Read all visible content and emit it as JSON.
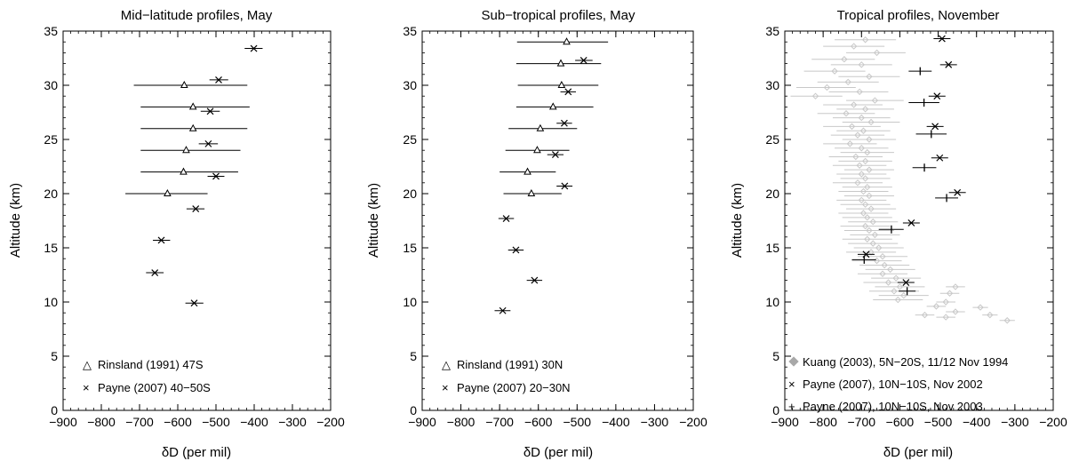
{
  "chart_data": [
    {
      "type": "scatter",
      "title": "Mid−latitude profiles, May",
      "xlabel": "δD (per mil)",
      "ylabel": "Altitude (km)",
      "xlim": [
        -900,
        -200
      ],
      "ylim": [
        0,
        35
      ],
      "xticks": [
        "−900",
        "−800",
        "−700",
        "−600",
        "−500",
        "−400",
        "−300",
        "−200"
      ],
      "yticks": [
        "0",
        "5",
        "10",
        "15",
        "20",
        "25",
        "30",
        "35"
      ],
      "legend_position": "bottom-left",
      "series": [
        {
          "name": "Rinsland (1991) 47S",
          "marker": "triangle",
          "points": [
            {
              "x": -583,
              "y": 30,
              "xerr_low": -715,
              "xerr_high": -418
            },
            {
              "x": -560,
              "y": 28,
              "xerr_low": -697,
              "xerr_high": -412
            },
            {
              "x": -560,
              "y": 26,
              "xerr_low": -697,
              "xerr_high": -418
            },
            {
              "x": -578,
              "y": 24,
              "xerr_low": -697,
              "xerr_high": -436
            },
            {
              "x": -585,
              "y": 22,
              "xerr_low": -697,
              "xerr_high": -442
            },
            {
              "x": -627,
              "y": 20,
              "xerr_low": -737,
              "xerr_high": -522
            }
          ]
        },
        {
          "name": "Payne (2007) 40−50S",
          "marker": "x",
          "points": [
            {
              "x": -401,
              "y": 33.4,
              "xerr_low": -425,
              "xerr_high": -378
            },
            {
              "x": -493,
              "y": 30.5,
              "xerr_low": -517,
              "xerr_high": -468
            },
            {
              "x": -515,
              "y": 27.6,
              "xerr_low": -540,
              "xerr_high": -490
            },
            {
              "x": -520,
              "y": 24.6,
              "xerr_low": -545,
              "xerr_high": -495
            },
            {
              "x": -500,
              "y": 21.6,
              "xerr_low": -522,
              "xerr_high": -478
            },
            {
              "x": -553,
              "y": 18.6,
              "xerr_low": -577,
              "xerr_high": -530
            },
            {
              "x": -643,
              "y": 15.7,
              "xerr_low": -665,
              "xerr_high": -620
            },
            {
              "x": -660,
              "y": 12.7,
              "xerr_low": -683,
              "xerr_high": -637
            },
            {
              "x": -557,
              "y": 9.9,
              "xerr_low": -580,
              "xerr_high": -533
            }
          ]
        }
      ]
    },
    {
      "type": "scatter",
      "title": "Sub−tropical profiles, May",
      "xlabel": "δD (per mil)",
      "ylabel": "Altitude (km)",
      "xlim": [
        -900,
        -200
      ],
      "ylim": [
        0,
        35
      ],
      "xticks": [
        "−900",
        "−800",
        "−700",
        "−600",
        "−500",
        "−400",
        "−300",
        "−200"
      ],
      "yticks": [
        "0",
        "5",
        "10",
        "15",
        "20",
        "25",
        "30",
        "35"
      ],
      "legend_position": "bottom-left",
      "series": [
        {
          "name": "Rinsland (1991) 30N",
          "marker": "triangle",
          "points": [
            {
              "x": -527,
              "y": 34,
              "xerr_low": -655,
              "xerr_high": -420
            },
            {
              "x": -542,
              "y": 32,
              "xerr_low": -657,
              "xerr_high": -438
            },
            {
              "x": -540,
              "y": 30,
              "xerr_low": -653,
              "xerr_high": -445
            },
            {
              "x": -562,
              "y": 28,
              "xerr_low": -657,
              "xerr_high": -458
            },
            {
              "x": -595,
              "y": 26,
              "xerr_low": -677,
              "xerr_high": -500
            },
            {
              "x": -603,
              "y": 24,
              "xerr_low": -685,
              "xerr_high": -520
            },
            {
              "x": -628,
              "y": 22,
              "xerr_low": -700,
              "xerr_high": -555
            },
            {
              "x": -618,
              "y": 20,
              "xerr_low": -690,
              "xerr_high": -540
            }
          ]
        },
        {
          "name": "Payne (2007) 20−30N",
          "marker": "x",
          "points": [
            {
              "x": -483,
              "y": 32.3,
              "xerr_low": -505,
              "xerr_high": -460
            },
            {
              "x": -523,
              "y": 29.4,
              "xerr_low": -543,
              "xerr_high": -503
            },
            {
              "x": -533,
              "y": 26.5,
              "xerr_low": -553,
              "xerr_high": -513
            },
            {
              "x": -556,
              "y": 23.6,
              "xerr_low": -577,
              "xerr_high": -535
            },
            {
              "x": -532,
              "y": 20.7,
              "xerr_low": -553,
              "xerr_high": -512
            },
            {
              "x": -683,
              "y": 17.7,
              "xerr_low": -703,
              "xerr_high": -663
            },
            {
              "x": -658,
              "y": 14.8,
              "xerr_low": -678,
              "xerr_high": -638
            },
            {
              "x": -610,
              "y": 12.0,
              "xerr_low": -630,
              "xerr_high": -590
            },
            {
              "x": -692,
              "y": 9.2,
              "xerr_low": -713,
              "xerr_high": -672
            }
          ]
        }
      ]
    },
    {
      "type": "scatter",
      "title": "Tropical profiles, November",
      "xlabel": "δD (per mil)",
      "ylabel": "Altitude (km)",
      "xlim": [
        -900,
        -200
      ],
      "ylim": [
        0,
        35
      ],
      "xticks": [
        "−900",
        "−800",
        "−700",
        "−600",
        "−500",
        "−400",
        "−300",
        "−200"
      ],
      "yticks": [
        "0",
        "5",
        "10",
        "15",
        "20",
        "25",
        "30",
        "35"
      ],
      "legend_position": "bottom-left",
      "series": [
        {
          "name": "Kuang (2003), 5N−20S, 11/12 Nov 1994",
          "marker": "diamond",
          "color": "#c8c8c8",
          "points_note_free": true,
          "points": [
            {
              "x": -690,
              "y": 34.2,
              "xerr_low": -770,
              "xerr_high": -610
            },
            {
              "x": -720,
              "y": 33.6,
              "xerr_low": -800,
              "xerr_high": -640
            },
            {
              "x": -660,
              "y": 33.0,
              "xerr_low": -740,
              "xerr_high": -585
            },
            {
              "x": -745,
              "y": 32.4,
              "xerr_low": -830,
              "xerr_high": -665
            },
            {
              "x": -700,
              "y": 31.9,
              "xerr_low": -780,
              "xerr_high": -620
            },
            {
              "x": -770,
              "y": 31.3,
              "xerr_low": -850,
              "xerr_high": -690
            },
            {
              "x": -680,
              "y": 30.8,
              "xerr_low": -760,
              "xerr_high": -600
            },
            {
              "x": -735,
              "y": 30.3,
              "xerr_low": -815,
              "xerr_high": -655
            },
            {
              "x": -790,
              "y": 29.8,
              "xerr_low": -870,
              "xerr_high": -715
            },
            {
              "x": -705,
              "y": 29.4,
              "xerr_low": -785,
              "xerr_high": -630
            },
            {
              "x": -820,
              "y": 29.0,
              "xerr_low": -885,
              "xerr_high": -750
            },
            {
              "x": -665,
              "y": 28.6,
              "xerr_low": -740,
              "xerr_high": -590
            },
            {
              "x": -720,
              "y": 28.2,
              "xerr_low": -800,
              "xerr_high": -645
            },
            {
              "x": -690,
              "y": 27.8,
              "xerr_low": -765,
              "xerr_high": -615
            },
            {
              "x": -740,
              "y": 27.4,
              "xerr_low": -815,
              "xerr_high": -665
            },
            {
              "x": -700,
              "y": 27.0,
              "xerr_low": -775,
              "xerr_high": -625
            },
            {
              "x": -675,
              "y": 26.6,
              "xerr_low": -750,
              "xerr_high": -600
            },
            {
              "x": -725,
              "y": 26.2,
              "xerr_low": -800,
              "xerr_high": -650
            },
            {
              "x": -695,
              "y": 25.8,
              "xerr_low": -765,
              "xerr_high": -625
            },
            {
              "x": -710,
              "y": 25.4,
              "xerr_low": -780,
              "xerr_high": -640
            },
            {
              "x": -680,
              "y": 25.0,
              "xerr_low": -750,
              "xerr_high": -610
            },
            {
              "x": -730,
              "y": 24.6,
              "xerr_low": -800,
              "xerr_high": -660
            },
            {
              "x": -700,
              "y": 24.2,
              "xerr_low": -770,
              "xerr_high": -630
            },
            {
              "x": -685,
              "y": 23.8,
              "xerr_low": -755,
              "xerr_high": -615
            },
            {
              "x": -715,
              "y": 23.4,
              "xerr_low": -785,
              "xerr_high": -645
            },
            {
              "x": -690,
              "y": 23.0,
              "xerr_low": -760,
              "xerr_high": -620
            },
            {
              "x": -705,
              "y": 22.6,
              "xerr_low": -775,
              "xerr_high": -635
            },
            {
              "x": -680,
              "y": 22.2,
              "xerr_low": -745,
              "xerr_high": -615
            },
            {
              "x": -700,
              "y": 21.8,
              "xerr_low": -765,
              "xerr_high": -635
            },
            {
              "x": -690,
              "y": 21.4,
              "xerr_low": -755,
              "xerr_high": -625
            },
            {
              "x": -710,
              "y": 21.0,
              "xerr_low": -775,
              "xerr_high": -645
            },
            {
              "x": -685,
              "y": 20.6,
              "xerr_low": -750,
              "xerr_high": -620
            },
            {
              "x": -695,
              "y": 20.2,
              "xerr_low": -760,
              "xerr_high": -630
            },
            {
              "x": -680,
              "y": 19.8,
              "xerr_low": -745,
              "xerr_high": -615
            },
            {
              "x": -700,
              "y": 19.4,
              "xerr_low": -765,
              "xerr_high": -635
            },
            {
              "x": -690,
              "y": 19.0,
              "xerr_low": -755,
              "xerr_high": -625
            },
            {
              "x": -675,
              "y": 18.6,
              "xerr_low": -740,
              "xerr_high": -610
            },
            {
              "x": -695,
              "y": 18.2,
              "xerr_low": -760,
              "xerr_high": -630
            },
            {
              "x": -685,
              "y": 17.8,
              "xerr_low": -750,
              "xerr_high": -620
            },
            {
              "x": -670,
              "y": 17.4,
              "xerr_low": -735,
              "xerr_high": -605
            },
            {
              "x": -690,
              "y": 17.0,
              "xerr_low": -755,
              "xerr_high": -625
            },
            {
              "x": -680,
              "y": 16.6,
              "xerr_low": -745,
              "xerr_high": -615
            },
            {
              "x": -665,
              "y": 16.2,
              "xerr_low": -730,
              "xerr_high": -600
            },
            {
              "x": -685,
              "y": 15.8,
              "xerr_low": -750,
              "xerr_high": -620
            },
            {
              "x": -670,
              "y": 15.4,
              "xerr_low": -735,
              "xerr_high": -605
            },
            {
              "x": -655,
              "y": 15.0,
              "xerr_low": -720,
              "xerr_high": -590
            },
            {
              "x": -675,
              "y": 14.6,
              "xerr_low": -740,
              "xerr_high": -610
            },
            {
              "x": -645,
              "y": 14.2,
              "xerr_low": -710,
              "xerr_high": -580
            },
            {
              "x": -660,
              "y": 13.8,
              "xerr_low": -725,
              "xerr_high": -595
            },
            {
              "x": -640,
              "y": 13.4,
              "xerr_low": -705,
              "xerr_high": -575
            },
            {
              "x": -625,
              "y": 13.0,
              "xerr_low": -690,
              "xerr_high": -560
            },
            {
              "x": -645,
              "y": 12.6,
              "xerr_low": -710,
              "xerr_high": -580
            },
            {
              "x": -610,
              "y": 12.2,
              "xerr_low": -675,
              "xerr_high": -545
            },
            {
              "x": -630,
              "y": 11.8,
              "xerr_low": -695,
              "xerr_high": -565
            },
            {
              "x": -600,
              "y": 11.4,
              "xerr_low": -665,
              "xerr_high": -535
            },
            {
              "x": -615,
              "y": 11.0,
              "xerr_low": -680,
              "xerr_high": -550
            },
            {
              "x": -590,
              "y": 10.6,
              "xerr_low": -655,
              "xerr_high": -525
            },
            {
              "x": -605,
              "y": 10.2,
              "xerr_low": -670,
              "xerr_high": -540
            },
            {
              "x": -455,
              "y": 11.4,
              "xerr_low": -480,
              "xerr_high": -430
            },
            {
              "x": -470,
              "y": 10.8,
              "xerr_low": -495,
              "xerr_high": -445
            },
            {
              "x": -480,
              "y": 10.0,
              "xerr_low": -505,
              "xerr_high": -455
            },
            {
              "x": -505,
              "y": 9.6,
              "xerr_low": -530,
              "xerr_high": -480
            },
            {
              "x": -390,
              "y": 9.5,
              "xerr_low": -410,
              "xerr_high": -370
            },
            {
              "x": -455,
              "y": 9.1,
              "xerr_low": -480,
              "xerr_high": -430
            },
            {
              "x": -535,
              "y": 8.8,
              "xerr_low": -560,
              "xerr_high": -510
            },
            {
              "x": -480,
              "y": 8.6,
              "xerr_low": -505,
              "xerr_high": -455
            },
            {
              "x": -365,
              "y": 8.8,
              "xerr_low": -385,
              "xerr_high": -345
            },
            {
              "x": -320,
              "y": 8.3,
              "xerr_low": -340,
              "xerr_high": -300
            }
          ]
        },
        {
          "name": "Payne (2007), 10N−10S, Nov 2002",
          "marker": "x",
          "points": [
            {
              "x": -490,
              "y": 34.3,
              "xerr_low": -512,
              "xerr_high": -468
            },
            {
              "x": -473,
              "y": 31.9,
              "xerr_low": -495,
              "xerr_high": -451
            },
            {
              "x": -503,
              "y": 29.0,
              "xerr_low": -525,
              "xerr_high": -481
            },
            {
              "x": -508,
              "y": 26.2,
              "xerr_low": -530,
              "xerr_high": -486
            },
            {
              "x": -496,
              "y": 23.3,
              "xerr_low": -518,
              "xerr_high": -474
            },
            {
              "x": -450,
              "y": 20.1,
              "xerr_low": -472,
              "xerr_high": -428
            },
            {
              "x": -570,
              "y": 17.3,
              "xerr_low": -592,
              "xerr_high": -548
            },
            {
              "x": -688,
              "y": 14.4,
              "xerr_low": -710,
              "xerr_high": -666
            },
            {
              "x": -584,
              "y": 11.8,
              "xerr_low": -606,
              "xerr_high": -562
            }
          ]
        },
        {
          "name": "Payne (2007), 10N−10S, Nov 2003",
          "marker": "plus",
          "points": [
            {
              "x": -547,
              "y": 31.3,
              "xerr_low": -577,
              "xerr_high": -517
            },
            {
              "x": -537,
              "y": 28.4,
              "xerr_low": -577,
              "xerr_high": -497
            },
            {
              "x": -518,
              "y": 25.5,
              "xerr_low": -558,
              "xerr_high": -478
            },
            {
              "x": -536,
              "y": 22.4,
              "xerr_low": -567,
              "xerr_high": -505
            },
            {
              "x": -478,
              "y": 19.6,
              "xerr_low": -508,
              "xerr_high": -448
            },
            {
              "x": -622,
              "y": 16.7,
              "xerr_low": -655,
              "xerr_high": -590
            },
            {
              "x": -693,
              "y": 13.9,
              "xerr_low": -725,
              "xerr_high": -662
            },
            {
              "x": -581,
              "y": 11.0,
              "xerr_low": -603,
              "xerr_high": -559
            }
          ]
        }
      ]
    }
  ]
}
